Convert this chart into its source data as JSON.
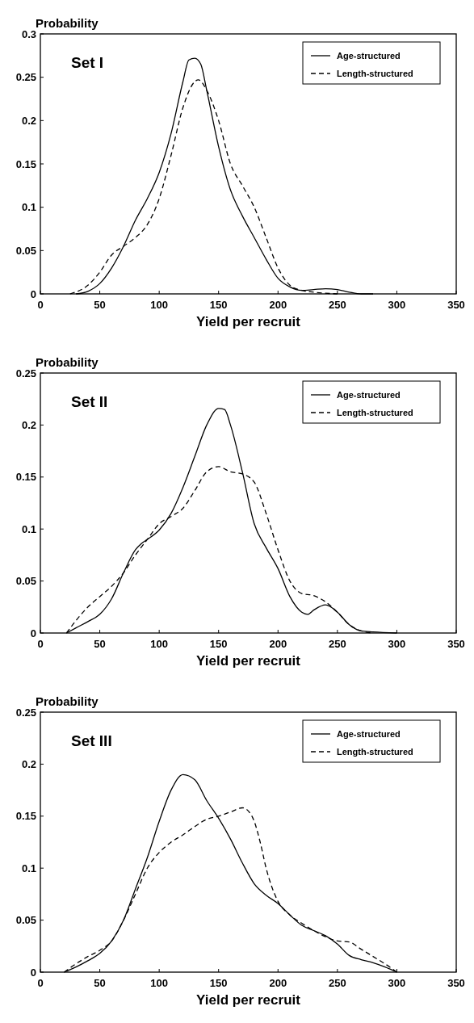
{
  "chart_data": [
    {
      "type": "line",
      "ylabel": "Probability",
      "xlabel": "Yield per recruit",
      "annotations": [
        "Set I"
      ],
      "xlim": [
        0,
        350
      ],
      "xticks": [
        0,
        50,
        100,
        150,
        200,
        250,
        300,
        350
      ],
      "ylim": [
        0,
        0.3
      ],
      "yticks": [
        0,
        0.05,
        0.1,
        0.15,
        0.2,
        0.25,
        0.3
      ],
      "legend": "top right",
      "grid": false,
      "series": [
        {
          "name": "Age-structured",
          "color": "#000000",
          "line_style": "solid",
          "x": [
            30,
            40,
            50,
            60,
            70,
            80,
            90,
            100,
            110,
            120,
            125,
            130,
            135,
            140,
            150,
            160,
            170,
            180,
            190,
            200,
            210,
            220,
            230,
            240,
            250,
            260,
            270,
            280
          ],
          "values": [
            0,
            0.003,
            0.012,
            0.03,
            0.055,
            0.085,
            0.11,
            0.14,
            0.185,
            0.245,
            0.27,
            0.272,
            0.265,
            0.235,
            0.17,
            0.12,
            0.09,
            0.065,
            0.04,
            0.018,
            0.008,
            0.004,
            0.005,
            0.006,
            0.005,
            0.002,
            0,
            0
          ]
        },
        {
          "name": "Length-structured",
          "color": "#000000",
          "line_style": "dashed",
          "x": [
            25,
            40,
            50,
            60,
            70,
            80,
            90,
            100,
            110,
            120,
            130,
            133,
            140,
            150,
            160,
            170,
            180,
            190,
            200,
            210,
            220,
            230,
            250
          ],
          "values": [
            0,
            0.01,
            0.025,
            0.045,
            0.055,
            0.065,
            0.08,
            0.11,
            0.16,
            0.215,
            0.245,
            0.247,
            0.235,
            0.2,
            0.15,
            0.125,
            0.1,
            0.065,
            0.03,
            0.01,
            0.004,
            0.002,
            0
          ]
        }
      ]
    },
    {
      "type": "line",
      "ylabel": "Probability",
      "xlabel": "Yield per recruit",
      "annotations": [
        "Set II"
      ],
      "xlim": [
        0,
        350
      ],
      "xticks": [
        0,
        50,
        100,
        150,
        200,
        250,
        300,
        350
      ],
      "ylim": [
        0,
        0.25
      ],
      "yticks": [
        0,
        0.05,
        0.1,
        0.15,
        0.2,
        0.25
      ],
      "legend": "top right",
      "grid": false,
      "series": [
        {
          "name": "Age-structured",
          "color": "#000000",
          "line_style": "solid",
          "x": [
            22,
            30,
            40,
            50,
            60,
            70,
            80,
            85,
            90,
            100,
            110,
            120,
            130,
            140,
            150,
            155,
            160,
            170,
            180,
            190,
            200,
            210,
            220,
            225,
            230,
            240,
            250,
            260,
            270,
            280,
            300
          ],
          "values": [
            0,
            0.005,
            0.011,
            0.018,
            0.033,
            0.058,
            0.08,
            0.086,
            0.09,
            0.099,
            0.115,
            0.14,
            0.17,
            0.2,
            0.216,
            0.215,
            0.2,
            0.155,
            0.105,
            0.082,
            0.062,
            0.035,
            0.02,
            0.018,
            0.022,
            0.027,
            0.02,
            0.008,
            0.002,
            0.001,
            0
          ]
        },
        {
          "name": "Length-structured",
          "color": "#000000",
          "line_style": "dashed",
          "x": [
            22,
            30,
            40,
            50,
            60,
            70,
            80,
            90,
            100,
            110,
            120,
            130,
            140,
            150,
            160,
            170,
            180,
            190,
            200,
            210,
            220,
            230,
            240,
            250,
            260,
            270,
            280
          ],
          "values": [
            0,
            0.012,
            0.025,
            0.035,
            0.045,
            0.058,
            0.075,
            0.09,
            0.105,
            0.112,
            0.12,
            0.137,
            0.155,
            0.16,
            0.155,
            0.153,
            0.145,
            0.115,
            0.08,
            0.05,
            0.038,
            0.036,
            0.03,
            0.02,
            0.008,
            0.002,
            0
          ]
        }
      ]
    },
    {
      "type": "line",
      "ylabel": "Probability",
      "xlabel": "Yield per recruit",
      "annotations": [
        "Set III"
      ],
      "xlim": [
        0,
        350
      ],
      "xticks": [
        0,
        50,
        100,
        150,
        200,
        250,
        300,
        350
      ],
      "ylim": [
        0,
        0.25
      ],
      "yticks": [
        0,
        0.05,
        0.1,
        0.15,
        0.2,
        0.25
      ],
      "legend": "top right",
      "grid": false,
      "series": [
        {
          "name": "Age-structured",
          "color": "#000000",
          "line_style": "solid",
          "x": [
            20,
            30,
            40,
            50,
            60,
            70,
            80,
            90,
            100,
            110,
            120,
            130,
            140,
            150,
            160,
            170,
            180,
            190,
            200,
            210,
            220,
            230,
            240,
            250,
            260,
            270,
            280,
            290,
            300
          ],
          "values": [
            0,
            0.005,
            0.011,
            0.018,
            0.03,
            0.05,
            0.08,
            0.11,
            0.145,
            0.175,
            0.19,
            0.185,
            0.165,
            0.148,
            0.128,
            0.105,
            0.085,
            0.074,
            0.066,
            0.055,
            0.045,
            0.04,
            0.035,
            0.027,
            0.016,
            0.012,
            0.009,
            0.005,
            0
          ]
        },
        {
          "name": "Length-structured",
          "color": "#000000",
          "line_style": "dashed",
          "x": [
            20,
            30,
            40,
            50,
            60,
            70,
            80,
            90,
            100,
            110,
            120,
            130,
            140,
            150,
            160,
            170,
            175,
            180,
            185,
            190,
            200,
            210,
            220,
            230,
            240,
            250,
            260,
            270,
            280,
            290,
            300
          ],
          "values": [
            0,
            0.008,
            0.015,
            0.021,
            0.03,
            0.05,
            0.075,
            0.1,
            0.115,
            0.125,
            0.132,
            0.14,
            0.147,
            0.15,
            0.154,
            0.158,
            0.155,
            0.145,
            0.125,
            0.1,
            0.068,
            0.055,
            0.047,
            0.04,
            0.034,
            0.03,
            0.029,
            0.022,
            0.015,
            0.008,
            0
          ]
        }
      ]
    }
  ]
}
